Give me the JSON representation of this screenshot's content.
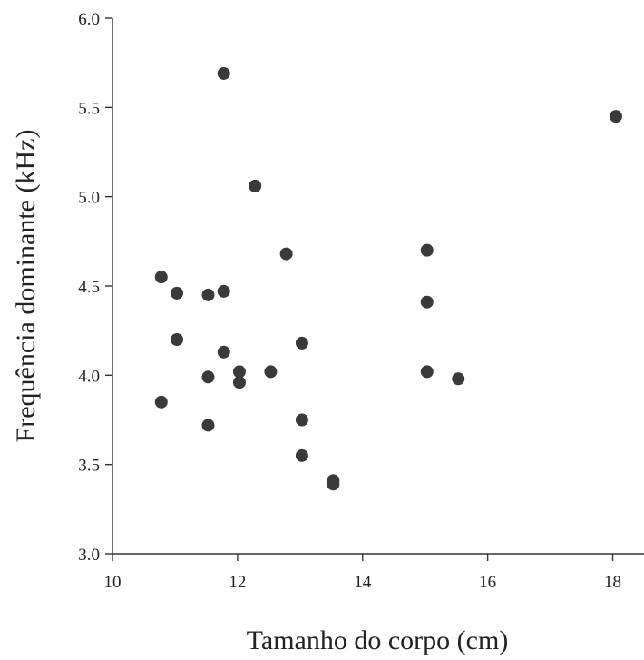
{
  "chart_data": {
    "type": "scatter",
    "title": "",
    "xlabel": "Tamanho do corpo (cm)",
    "ylabel": "Frequência dominante (kHz)",
    "xlim": [
      10,
      18.5
    ],
    "ylim": [
      3.0,
      6.0
    ],
    "xticks": [
      10,
      12,
      14,
      16,
      18
    ],
    "yticks": [
      3.0,
      3.5,
      4.0,
      4.5,
      5.0,
      5.5,
      6.0
    ],
    "xtick_labels": [
      "10",
      "12",
      "14",
      "16",
      "18"
    ],
    "ytick_labels": [
      "3.0",
      "3.5",
      "4.0",
      "4.5",
      "5.0",
      "5.5",
      "6.0"
    ],
    "grid": false,
    "legend": "none",
    "marker_color": "#3a3a3a",
    "series": [
      {
        "points": [
          {
            "x": 10.78,
            "y": 4.55
          },
          {
            "x": 10.78,
            "y": 3.85
          },
          {
            "x": 11.03,
            "y": 4.46
          },
          {
            "x": 11.03,
            "y": 4.2
          },
          {
            "x": 11.53,
            "y": 4.45
          },
          {
            "x": 11.53,
            "y": 3.99
          },
          {
            "x": 11.53,
            "y": 3.72
          },
          {
            "x": 11.78,
            "y": 5.69
          },
          {
            "x": 11.78,
            "y": 4.47
          },
          {
            "x": 11.78,
            "y": 4.13
          },
          {
            "x": 12.03,
            "y": 4.02
          },
          {
            "x": 12.03,
            "y": 3.96
          },
          {
            "x": 12.28,
            "y": 5.06
          },
          {
            "x": 12.53,
            "y": 4.02
          },
          {
            "x": 12.78,
            "y": 4.68
          },
          {
            "x": 13.03,
            "y": 4.18
          },
          {
            "x": 13.03,
            "y": 3.75
          },
          {
            "x": 13.03,
            "y": 3.55
          },
          {
            "x": 13.53,
            "y": 3.41
          },
          {
            "x": 13.53,
            "y": 3.39
          },
          {
            "x": 15.03,
            "y": 4.7
          },
          {
            "x": 15.03,
            "y": 4.41
          },
          {
            "x": 15.03,
            "y": 4.02
          },
          {
            "x": 15.53,
            "y": 3.98
          },
          {
            "x": 18.05,
            "y": 5.45
          }
        ]
      }
    ]
  }
}
